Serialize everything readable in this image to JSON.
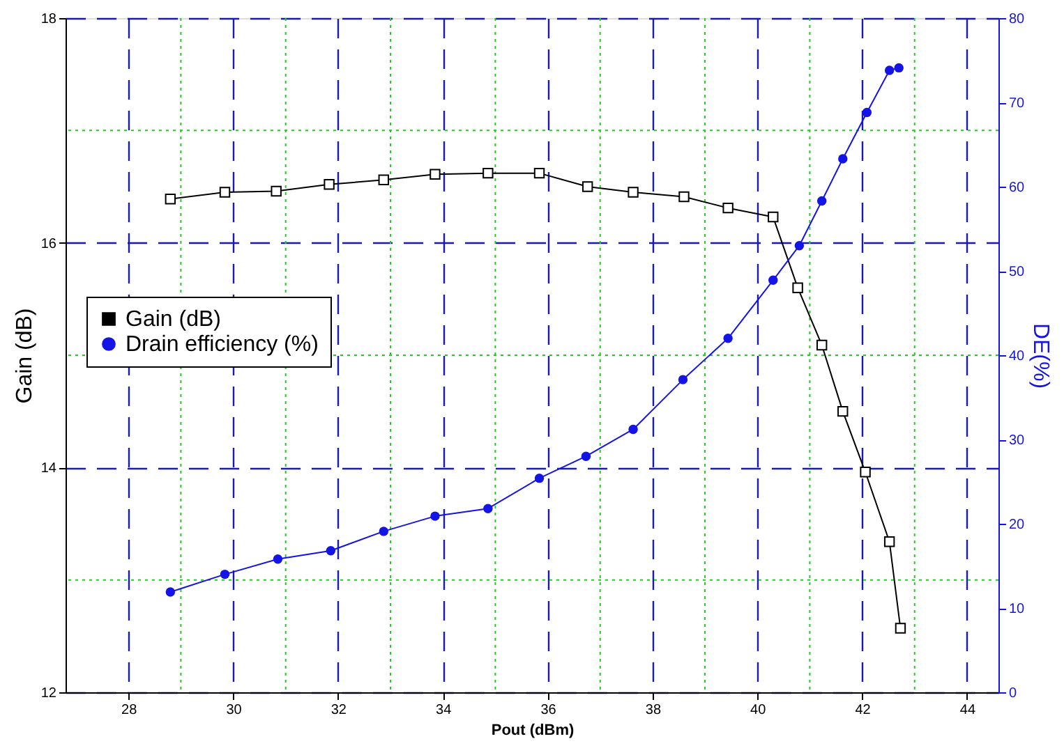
{
  "chart_data": {
    "type": "line",
    "xlabel": "Pout (dBm)",
    "ylabel": "Gain (dB)",
    "y2label": "DE(%)",
    "xlim": [
      26.8,
      44.6
    ],
    "xticks": [
      28,
      {
        "value": 29,
        "label": null
      },
      30,
      {
        "value": 31,
        "label": null
      },
      32,
      {
        "value": 33,
        "label": null
      },
      34,
      {
        "value": 35,
        "label": null
      },
      36,
      {
        "value": 37,
        "label": null
      },
      38,
      {
        "value": 39,
        "label": null
      },
      40,
      {
        "value": 41,
        "label": null
      },
      42,
      {
        "value": 43,
        "label": null
      },
      44
    ],
    "ylim": [
      12,
      18
    ],
    "yticks": [
      12,
      {
        "value": 13,
        "label": null
      },
      14,
      {
        "value": 15,
        "label": null
      },
      16,
      {
        "value": 17,
        "label": null
      },
      18
    ],
    "y2lim": [
      0,
      80
    ],
    "y2ticks": [
      0,
      10,
      20,
      30,
      40,
      50,
      60,
      70,
      80
    ],
    "grid": true,
    "legend": "left",
    "line_style": "solid",
    "series": [
      {
        "name": "Gain (dB)",
        "color": "#000000",
        "marker": "square",
        "x": [
          28.8,
          29.84,
          30.82,
          31.83,
          32.87,
          33.85,
          34.86,
          35.84,
          36.76,
          37.63,
          38.6,
          39.44,
          40.3,
          40.77,
          41.23,
          41.63,
          42.06,
          42.52,
          42.73
        ],
        "values": [
          16.39,
          16.45,
          16.46,
          16.52,
          16.56,
          16.61,
          16.62,
          16.62,
          16.5,
          16.45,
          16.41,
          16.31,
          16.23,
          15.6,
          15.09,
          14.5,
          13.96,
          13.34,
          12.57
        ]
      },
      {
        "name": "Drain efficiency (%)",
        "color": "#1414e6",
        "marker": "circle",
        "axis": "y2",
        "x": [
          28.8,
          29.84,
          30.85,
          31.86,
          32.87,
          33.85,
          34.86,
          35.84,
          36.73,
          37.63,
          38.58,
          39.44,
          40.3,
          40.8,
          41.23,
          41.63,
          42.09,
          42.52,
          42.7
        ],
        "values": [
          11.9,
          14.0,
          15.8,
          16.8,
          19.1,
          20.9,
          21.8,
          25.4,
          28.0,
          31.2,
          37.1,
          42.0,
          48.9,
          53.0,
          58.3,
          63.3,
          68.8,
          73.8,
          74.1
        ]
      }
    ]
  }
}
